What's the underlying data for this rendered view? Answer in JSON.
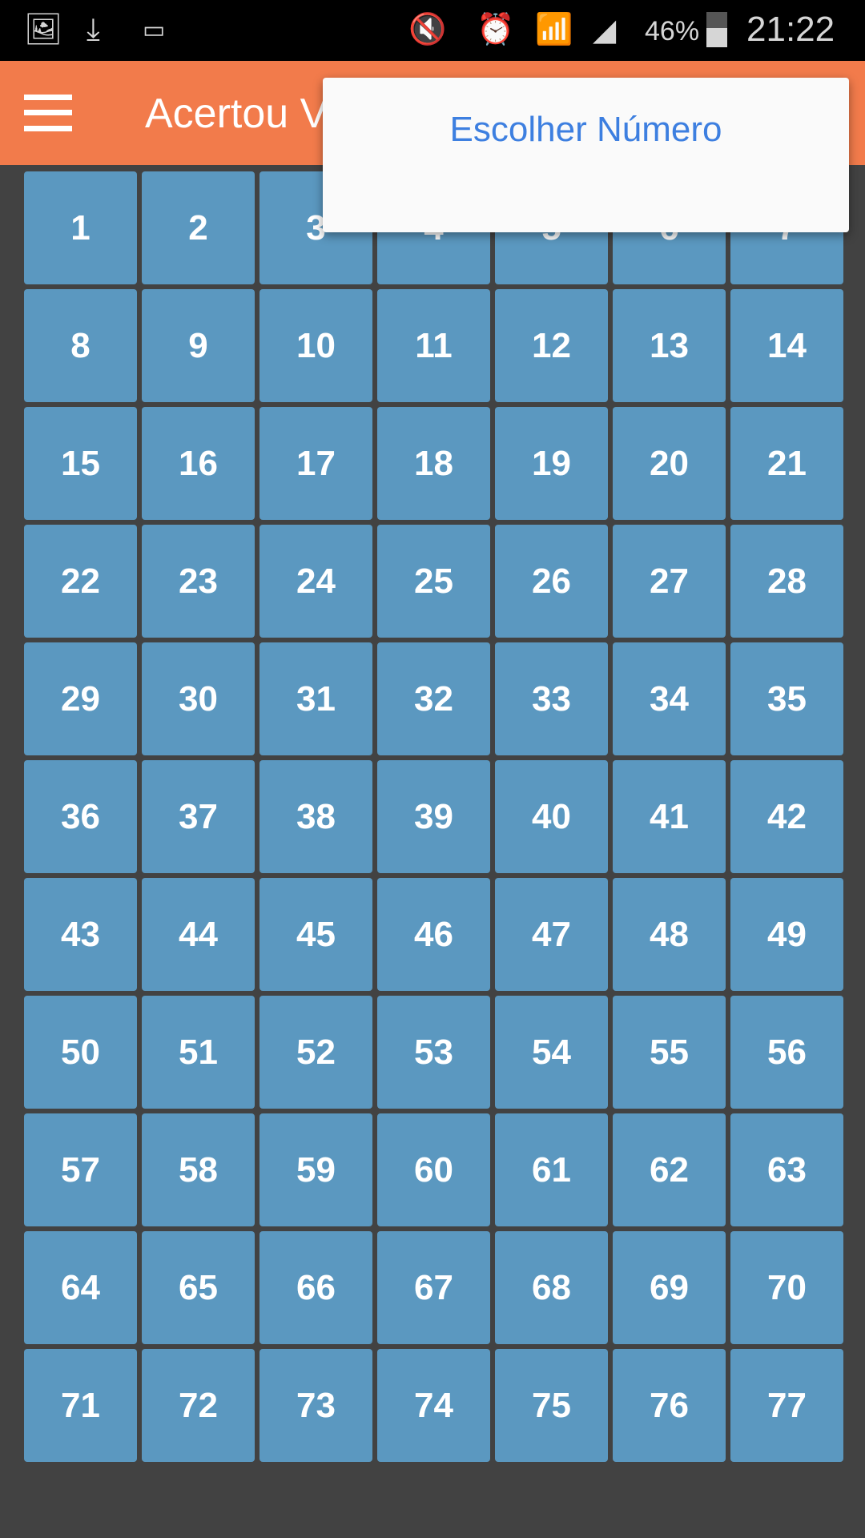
{
  "status_bar": {
    "left_icons": [
      "gallery-icon",
      "download-icon",
      "voicemail-icon"
    ],
    "right_icons": [
      "mute-icon",
      "alarm-icon",
      "wifi-icon",
      "signal-icon",
      "battery-icon"
    ],
    "battery": "46%",
    "time": "21:22"
  },
  "header": {
    "title": "Acertou V",
    "background": "#F27B4B"
  },
  "menu": {
    "items": [
      {
        "label": "Escolher Número"
      }
    ],
    "text_color": "#3D7FE0"
  },
  "grid": {
    "cell_color": "#5B98C0",
    "numbers": [
      1,
      2,
      3,
      4,
      5,
      6,
      7,
      8,
      9,
      10,
      11,
      12,
      13,
      14,
      15,
      16,
      17,
      18,
      19,
      20,
      21,
      22,
      23,
      24,
      25,
      26,
      27,
      28,
      29,
      30,
      31,
      32,
      33,
      34,
      35,
      36,
      37,
      38,
      39,
      40,
      41,
      42,
      43,
      44,
      45,
      46,
      47,
      48,
      49,
      50,
      51,
      52,
      53,
      54,
      55,
      56,
      57,
      58,
      59,
      60,
      61,
      62,
      63,
      64,
      65,
      66,
      67,
      68,
      69,
      70,
      71,
      72,
      73,
      74,
      75,
      76,
      77
    ]
  }
}
